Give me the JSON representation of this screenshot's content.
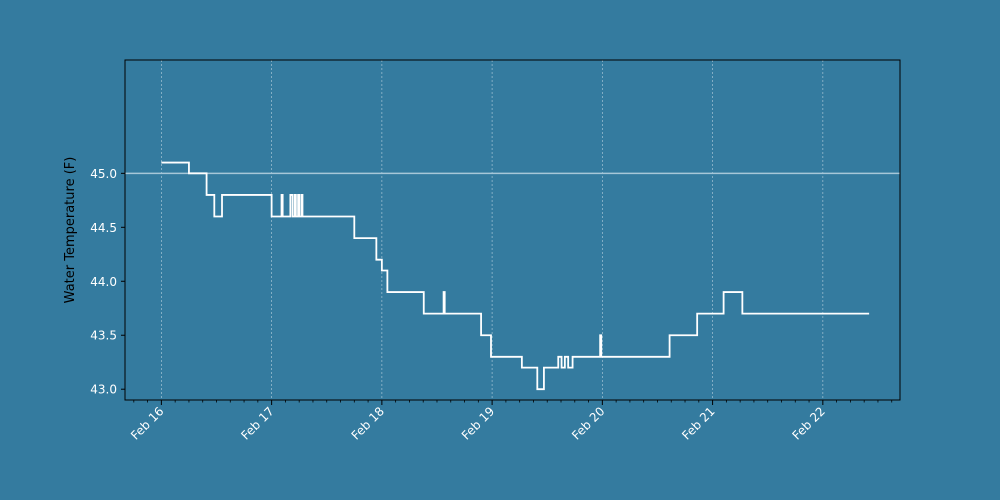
{
  "chart_data": {
    "type": "line",
    "title": "",
    "xlabel": "",
    "ylabel": "Water Temperature (F)",
    "xlim": [
      -0.33,
      6.7
    ],
    "ylim": [
      42.9,
      46.05
    ],
    "y_ticks": [
      43.0,
      43.5,
      44.0,
      44.5,
      45.0
    ],
    "y_tick_labels": [
      "43.0",
      "43.5",
      "44.0",
      "44.5",
      "45.0"
    ],
    "x_ticks": [
      0,
      1,
      2,
      3,
      4,
      5,
      6
    ],
    "x_tick_labels": [
      "Feb 16",
      "Feb 17",
      "Feb 18",
      "Feb 19",
      "Feb 20",
      "Feb 21",
      "Feb 22"
    ],
    "minor_ticks_per_day": 8,
    "reference_line": 45.0,
    "grid": "vertical dashed at major x ticks",
    "x_unit": "days since Feb 16",
    "series": [
      {
        "x": [
          0,
          0.25,
          0.25,
          0.41,
          0.41,
          0.48,
          0.48,
          0.55,
          0.55,
          1.0,
          1.0,
          1.09,
          1.09,
          1.1,
          1.1,
          1.17,
          1.17,
          1.19,
          1.19,
          1.21,
          1.21,
          1.22,
          1.22,
          1.24,
          1.24,
          1.25,
          1.25,
          1.27,
          1.27,
          1.28,
          1.28,
          1.29,
          1.29,
          1.75,
          1.75,
          1.95,
          1.95,
          2.0,
          2.0,
          2.05,
          2.05,
          2.38,
          2.38,
          2.56,
          2.56,
          2.57,
          2.57,
          2.9,
          2.9,
          2.99,
          2.99,
          3.27,
          3.27,
          3.41,
          3.41,
          3.47,
          3.47,
          3.6,
          3.6,
          3.63,
          3.63,
          3.66,
          3.66,
          3.69,
          3.69,
          3.73,
          3.73,
          3.98,
          3.98,
          3.99,
          3.99,
          4.61,
          4.61,
          4.86,
          4.86,
          5.1,
          5.1,
          5.27,
          5.27,
          6.42
        ],
        "y": [
          45.1,
          45.1,
          45.0,
          45.0,
          44.8,
          44.8,
          44.6,
          44.6,
          44.8,
          44.8,
          44.6,
          44.6,
          44.8,
          44.8,
          44.6,
          44.6,
          44.8,
          44.8,
          44.6,
          44.6,
          44.8,
          44.8,
          44.6,
          44.6,
          44.8,
          44.8,
          44.6,
          44.6,
          44.8,
          44.8,
          44.6,
          44.6,
          44.6,
          44.6,
          44.4,
          44.4,
          44.2,
          44.2,
          44.1,
          44.1,
          43.9,
          43.9,
          43.7,
          43.7,
          43.9,
          43.9,
          43.7,
          43.7,
          43.5,
          43.5,
          43.3,
          43.3,
          43.2,
          43.2,
          43.0,
          43.0,
          43.2,
          43.2,
          43.3,
          43.3,
          43.2,
          43.2,
          43.3,
          43.3,
          43.2,
          43.2,
          43.3,
          43.3,
          43.5,
          43.5,
          43.3,
          43.3,
          43.5,
          43.5,
          43.7,
          43.7,
          43.9,
          43.9,
          43.7,
          43.7
        ]
      }
    ]
  },
  "colors": {
    "background": "#347b9f",
    "plot_area": "#347b9f",
    "line": "#ffffff",
    "reference_line": "#a7c7d8",
    "frame": "#000000",
    "tick_label": "#ffffff",
    "axis_label": "#000000"
  }
}
